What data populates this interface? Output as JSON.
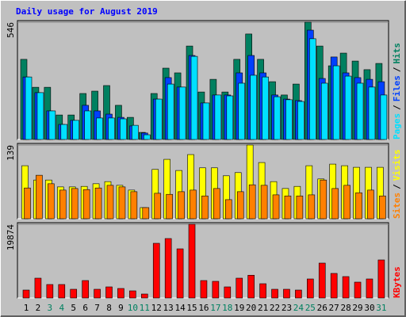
{
  "chart_data": [
    {
      "type": "bar",
      "title": "Daily usage for August 2019",
      "ylim": [
        0,
        546
      ],
      "yticks": [
        546
      ],
      "legend_separator": "/",
      "series": [
        {
          "name": "Hits",
          "color": "#008060",
          "values": [
            373,
            243,
            243,
            114,
            114,
            214,
            225,
            251,
            159,
            103,
            33,
            214,
            332,
            310,
            435,
            221,
            280,
            221,
            373,
            491,
            373,
            269,
            207,
            258,
            546,
            435,
            343,
            402,
            365,
            325,
            354
          ]
        },
        {
          "name": "Files",
          "color": "#0040ff",
          "values": [
            291,
            218,
            133,
            70,
            89,
            159,
            133,
            118,
            103,
            63,
            30,
            188,
            288,
            244,
            391,
            170,
            207,
            207,
            310,
            391,
            310,
            207,
            188,
            181,
            509,
            284,
            384,
            310,
            288,
            280,
            269
          ]
        },
        {
          "name": "Pages",
          "color": "#00e0ff",
          "values": [
            291,
            218,
            133,
            70,
            89,
            133,
            100,
            100,
            96,
            66,
            22,
            188,
            258,
            244,
            387,
            170,
            207,
            203,
            262,
            299,
            291,
            199,
            185,
            177,
            469,
            262,
            343,
            295,
            262,
            244,
            207
          ]
        }
      ]
    },
    {
      "type": "bar",
      "ylim": [
        0,
        139
      ],
      "yticks": [
        139
      ],
      "legend_separator": "/",
      "series": [
        {
          "name": "Visits",
          "color": "#ffff00",
          "values": [
            100,
            73,
            73,
            60,
            60,
            61,
            66,
            70,
            63,
            54,
            21,
            93,
            112,
            91,
            121,
            96,
            96,
            81,
            87,
            139,
            106,
            70,
            57,
            61,
            100,
            75,
            103,
            100,
            97,
            97,
            97
          ]
        },
        {
          "name": "Sites",
          "color": "#ff8000",
          "values": [
            58,
            82,
            66,
            54,
            57,
            55,
            58,
            63,
            60,
            51,
            21,
            48,
            46,
            51,
            54,
            43,
            57,
            36,
            51,
            64,
            63,
            45,
            43,
            43,
            45,
            73,
            57,
            63,
            49,
            54,
            43
          ]
        }
      ]
    },
    {
      "type": "bar",
      "ylim": [
        0,
        19874
      ],
      "yticks": [
        19874
      ],
      "categories": [
        "1",
        "2",
        "3",
        "4",
        "5",
        "6",
        "7",
        "8",
        "9",
        "10",
        "11",
        "12",
        "13",
        "14",
        "15",
        "16",
        "17",
        "18",
        "19",
        "20",
        "21",
        "22",
        "23",
        "24",
        "25",
        "26",
        "27",
        "28",
        "29",
        "30",
        "31"
      ],
      "category_colors": [
        "#000000",
        "#000000",
        "#008060",
        "#008060",
        "#000000",
        "#000000",
        "#000000",
        "#000000",
        "#000000",
        "#008060",
        "#008060",
        "#000000",
        "#000000",
        "#000000",
        "#000000",
        "#000000",
        "#008060",
        "#008060",
        "#000000",
        "#000000",
        "#000000",
        "#000000",
        "#000000",
        "#008060",
        "#008060",
        "#000000",
        "#000000",
        "#000000",
        "#000000",
        "#000000",
        "#008060"
      ],
      "series": [
        {
          "name": "KBytes",
          "color": "#ff0000",
          "values": [
            2137,
            5343,
            3633,
            3633,
            2351,
            4702,
            2351,
            2992,
            2565,
            1923,
            1069,
            14745,
            16027,
            13249,
            19874,
            4702,
            4488,
            2992,
            5343,
            6137,
            3847,
            2351,
            2351,
            2137,
            5129,
            9404,
            6625,
            5770,
            4274,
            5129,
            10259
          ]
        }
      ]
    }
  ]
}
